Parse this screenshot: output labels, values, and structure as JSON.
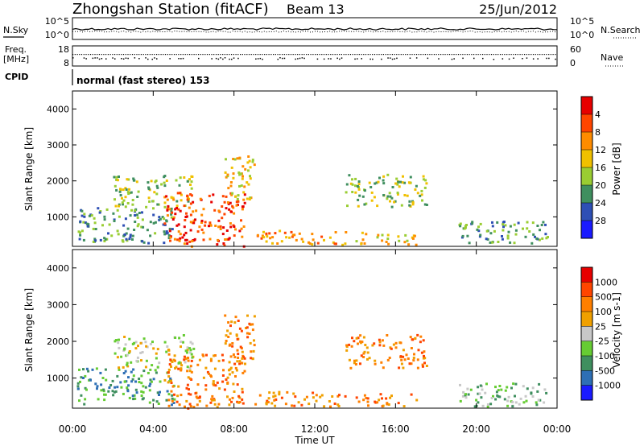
{
  "header": {
    "title": "Zhongshan Station (fitACF)",
    "beam": "Beam 13",
    "date": "25/Jun/2012"
  },
  "noise_panel": {
    "left_label": "N.Sky",
    "right_label": "N.Search",
    "left_ticks": [
      "10^5",
      "10^0"
    ],
    "right_ticks": [
      "10^5",
      "10^0"
    ]
  },
  "freq_panel": {
    "left_label_1": "Freq.",
    "left_label_2": "[MHz]",
    "right_label": "Nave",
    "left_ticks": [
      "18",
      "8"
    ],
    "right_ticks": [
      "60",
      "0"
    ]
  },
  "cpid": {
    "label": "CPID",
    "text": "normal (fast stereo) 153"
  },
  "chart_data": [
    {
      "type": "heatmap",
      "name": "power",
      "ylabel": "Slant Range [km]",
      "xlabel": "",
      "xlim": [
        0,
        24
      ],
      "ylim": [
        180,
        4500
      ],
      "yticks": [
        "1000",
        "2000",
        "3000",
        "4000"
      ],
      "colorbar": {
        "label": "Power [dB]",
        "ticks": [
          "4",
          "8",
          "12",
          "16",
          "20",
          "24",
          "28"
        ],
        "colors": [
          "#1a1aff",
          "#2e4fb5",
          "#3f8f5f",
          "#9acd32",
          "#f0c000",
          "#ff8c00",
          "#ff4500",
          "#e60000"
        ]
      },
      "features": [
        {
          "t0": 0.2,
          "t1": 5.0,
          "r0": 300,
          "r1": 1300,
          "level": 2
        },
        {
          "t0": 2.0,
          "t1": 6.0,
          "r0": 1300,
          "r1": 2200,
          "level": 3
        },
        {
          "t0": 4.5,
          "t1": 8.5,
          "r0": 200,
          "r1": 1700,
          "level": 6
        },
        {
          "t0": 7.5,
          "t1": 9.0,
          "r0": 1500,
          "r1": 2800,
          "level": 4
        },
        {
          "t0": 9.0,
          "t1": 13.5,
          "r0": 250,
          "r1": 650,
          "level": 5
        },
        {
          "t0": 13.5,
          "t1": 17.5,
          "r0": 1300,
          "r1": 2200,
          "level": 3
        },
        {
          "t0": 14.0,
          "t1": 17.0,
          "r0": 250,
          "r1": 600,
          "level": 4
        },
        {
          "t0": 19.0,
          "t1": 23.5,
          "r0": 250,
          "r1": 900,
          "level": 2
        }
      ]
    },
    {
      "type": "heatmap",
      "name": "velocity",
      "ylabel": "Slant Range [km]",
      "xlabel": "Time UT",
      "xlim": [
        0,
        24
      ],
      "ylim": [
        180,
        4500
      ],
      "yticks": [
        "1000",
        "2000",
        "3000",
        "4000"
      ],
      "xticks": [
        "00:00",
        "04:00",
        "08:00",
        "12:00",
        "16:00",
        "20:00",
        "00:00"
      ],
      "colorbar": {
        "label": "Velocity [m s-1]",
        "ticks": [
          "1000",
          "500",
          "100",
          "25",
          "-25",
          "-100",
          "-500",
          "-1000"
        ],
        "colors": [
          "#1a1aff",
          "#2e6fb5",
          "#3f8f5f",
          "#66cc33",
          "#c8c8c8",
          "#f0a000",
          "#ff7f00",
          "#ff4500",
          "#e60000"
        ]
      },
      "features": [
        {
          "t0": 0.2,
          "t1": 5.0,
          "r0": 300,
          "r1": 1300,
          "level": 2
        },
        {
          "t0": 2.0,
          "t1": 6.0,
          "r0": 1300,
          "r1": 2200,
          "level": 4
        },
        {
          "t0": 4.5,
          "t1": 8.5,
          "r0": 200,
          "r1": 1700,
          "level": 6
        },
        {
          "t0": 7.5,
          "t1": 9.0,
          "r0": 1500,
          "r1": 2800,
          "level": 6
        },
        {
          "t0": 9.0,
          "t1": 13.5,
          "r0": 250,
          "r1": 650,
          "level": 6
        },
        {
          "t0": 13.5,
          "t1": 17.5,
          "r0": 1300,
          "r1": 2200,
          "level": 6
        },
        {
          "t0": 14.0,
          "t1": 17.0,
          "r0": 250,
          "r1": 600,
          "level": 6
        },
        {
          "t0": 19.0,
          "t1": 23.5,
          "r0": 250,
          "r1": 900,
          "level": 3
        }
      ]
    }
  ]
}
